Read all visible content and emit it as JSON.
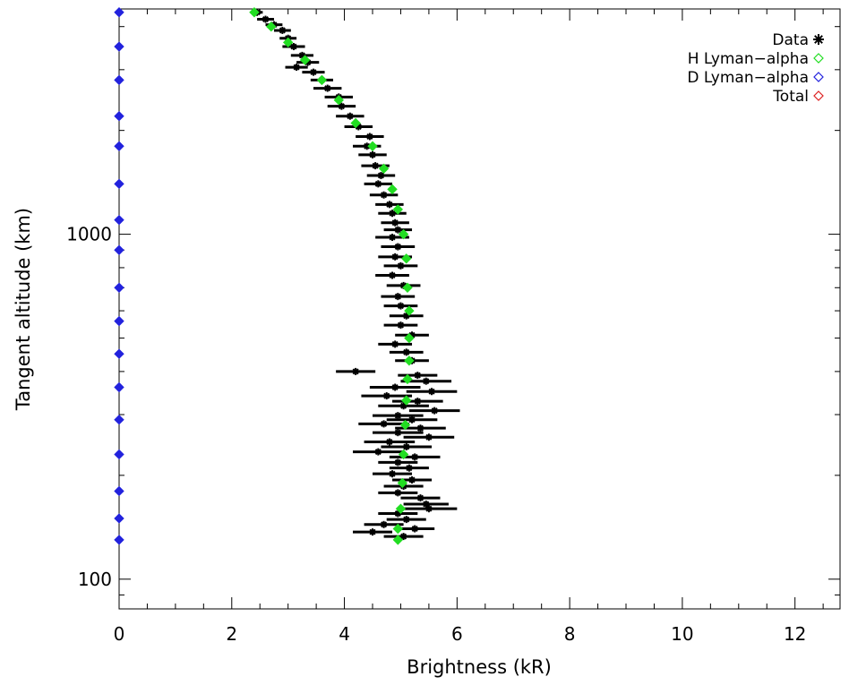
{
  "chart_data": {
    "type": "scatter",
    "xlabel": "Brightness (kR)",
    "ylabel": "Tangent altitude (km)",
    "xlim": [
      0,
      12.8
    ],
    "ylim": [
      82,
      4500
    ],
    "y_scale": "log",
    "x_ticks": [
      0,
      2,
      4,
      6,
      8,
      10,
      12
    ],
    "x_tick_labels": [
      "0",
      "2",
      "4",
      "6",
      "8",
      "10",
      "12"
    ],
    "y_ticks": [
      100,
      1000
    ],
    "y_tick_labels": [
      "100",
      "1000"
    ],
    "legend": {
      "position": "top-right",
      "entries": [
        {
          "label": "Data",
          "symbol": "asterisk",
          "color": "#000000"
        },
        {
          "label": "H Lyman−alpha",
          "symbol": "diamond",
          "color": "#22dd22"
        },
        {
          "label": "D Lyman−alpha",
          "symbol": "diamond",
          "color": "#2222dd"
        },
        {
          "label": "Total",
          "symbol": "diamond",
          "color": "#dd2222"
        }
      ]
    },
    "series": [
      {
        "name": "Data",
        "color": "#000000",
        "marker": "asterisk",
        "points": [
          [
            2.45,
            4400,
            0.1
          ],
          [
            2.6,
            4200,
            0.15
          ],
          [
            2.75,
            4050,
            0.15
          ],
          [
            2.9,
            3900,
            0.15
          ],
          [
            3.0,
            3700,
            0.15
          ],
          [
            3.1,
            3500,
            0.2
          ],
          [
            3.25,
            3300,
            0.2
          ],
          [
            3.35,
            3150,
            0.2
          ],
          [
            3.15,
            3050,
            0.2
          ],
          [
            3.45,
            2950,
            0.2
          ],
          [
            3.6,
            2800,
            0.2
          ],
          [
            3.7,
            2650,
            0.25
          ],
          [
            3.9,
            2500,
            0.25
          ],
          [
            3.95,
            2350,
            0.25
          ],
          [
            4.1,
            2200,
            0.25
          ],
          [
            4.25,
            2050,
            0.25
          ],
          [
            4.45,
            1920,
            0.25
          ],
          [
            4.4,
            1800,
            0.25
          ],
          [
            4.5,
            1700,
            0.25
          ],
          [
            4.55,
            1580,
            0.25
          ],
          [
            4.65,
            1480,
            0.25
          ],
          [
            4.6,
            1400,
            0.25
          ],
          [
            4.7,
            1300,
            0.25
          ],
          [
            4.8,
            1220,
            0.25
          ],
          [
            4.85,
            1150,
            0.25
          ],
          [
            4.9,
            1080,
            0.25
          ],
          [
            4.95,
            1030,
            0.25
          ],
          [
            4.85,
            980,
            0.3
          ],
          [
            4.95,
            920,
            0.3
          ],
          [
            4.9,
            860,
            0.3
          ],
          [
            5.0,
            810,
            0.3
          ],
          [
            4.85,
            760,
            0.3
          ],
          [
            5.05,
            710,
            0.3
          ],
          [
            4.95,
            660,
            0.3
          ],
          [
            5.0,
            620,
            0.3
          ],
          [
            5.1,
            580,
            0.3
          ],
          [
            5.0,
            545,
            0.3
          ],
          [
            5.2,
            510,
            0.3
          ],
          [
            4.9,
            480,
            0.3
          ],
          [
            5.1,
            455,
            0.3
          ],
          [
            5.2,
            430,
            0.3
          ],
          [
            4.2,
            400,
            0.35
          ],
          [
            5.3,
            390,
            0.35
          ],
          [
            5.45,
            375,
            0.45
          ],
          [
            4.9,
            360,
            0.45
          ],
          [
            5.55,
            350,
            0.45
          ],
          [
            4.75,
            340,
            0.45
          ],
          [
            5.3,
            328,
            0.45
          ],
          [
            5.05,
            318,
            0.45
          ],
          [
            5.6,
            308,
            0.45
          ],
          [
            4.95,
            298,
            0.45
          ],
          [
            5.2,
            290,
            0.45
          ],
          [
            4.7,
            282,
            0.45
          ],
          [
            5.35,
            274,
            0.45
          ],
          [
            4.95,
            266,
            0.45
          ],
          [
            5.5,
            258,
            0.45
          ],
          [
            4.8,
            250,
            0.45
          ],
          [
            5.1,
            242,
            0.45
          ],
          [
            4.6,
            234,
            0.45
          ],
          [
            5.25,
            226,
            0.45
          ],
          [
            4.95,
            218,
            0.35
          ],
          [
            5.15,
            210,
            0.35
          ],
          [
            4.85,
            202,
            0.35
          ],
          [
            5.2,
            194,
            0.35
          ],
          [
            5.05,
            186,
            0.35
          ],
          [
            4.95,
            178,
            0.35
          ],
          [
            5.35,
            172,
            0.35
          ],
          [
            5.45,
            165,
            0.4
          ],
          [
            5.5,
            160,
            0.5
          ],
          [
            4.95,
            155,
            0.35
          ],
          [
            5.1,
            149,
            0.35
          ],
          [
            4.7,
            144,
            0.35
          ],
          [
            5.25,
            140,
            0.35
          ],
          [
            4.5,
            137,
            0.35
          ],
          [
            5.05,
            133,
            0.35
          ]
        ]
      },
      {
        "name": "H Lyman−alpha",
        "color": "#22dd22",
        "marker": "diamond",
        "points": [
          [
            2.4,
            4400
          ],
          [
            2.7,
            4000
          ],
          [
            3.0,
            3600
          ],
          [
            3.3,
            3200
          ],
          [
            3.6,
            2800
          ],
          [
            3.9,
            2450
          ],
          [
            4.2,
            2100
          ],
          [
            4.5,
            1800
          ],
          [
            4.7,
            1550
          ],
          [
            4.85,
            1350
          ],
          [
            4.95,
            1180
          ],
          [
            5.05,
            1000
          ],
          [
            5.1,
            850
          ],
          [
            5.12,
            700
          ],
          [
            5.15,
            600
          ],
          [
            5.15,
            500
          ],
          [
            5.15,
            430
          ],
          [
            5.12,
            380
          ],
          [
            5.1,
            330
          ],
          [
            5.08,
            280
          ],
          [
            5.05,
            230
          ],
          [
            5.03,
            190
          ],
          [
            5.0,
            160
          ],
          [
            4.95,
            140
          ],
          [
            4.95,
            130
          ]
        ]
      },
      {
        "name": "D Lyman−alpha",
        "color": "#2222dd",
        "marker": "diamond",
        "points": [
          [
            0.0,
            4400
          ],
          [
            0.0,
            3500
          ],
          [
            0.0,
            2800
          ],
          [
            0.0,
            2200
          ],
          [
            0.0,
            1800
          ],
          [
            0.0,
            1400
          ],
          [
            0.0,
            1100
          ],
          [
            0.0,
            900
          ],
          [
            0.0,
            700
          ],
          [
            0.0,
            560
          ],
          [
            0.0,
            450
          ],
          [
            0.0,
            360
          ],
          [
            0.0,
            290
          ],
          [
            0.0,
            230
          ],
          [
            0.0,
            180
          ],
          [
            0.0,
            150
          ],
          [
            0.0,
            130
          ]
        ]
      },
      {
        "name": "Total",
        "color": "#dd2222",
        "marker": "diamond",
        "points": []
      }
    ]
  }
}
